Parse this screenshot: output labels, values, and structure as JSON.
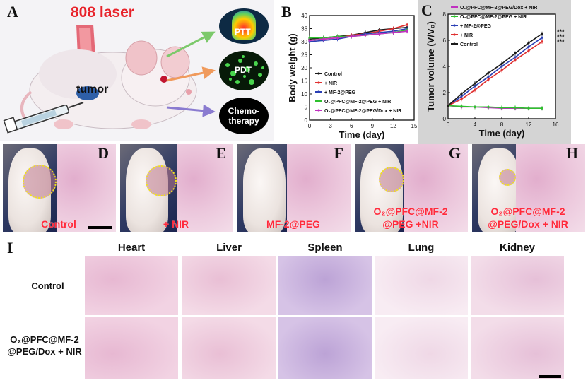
{
  "panelA": {
    "label": "A",
    "laser": "808 laser",
    "tumor": "tumor",
    "out1": "PTT",
    "out2": "PDT",
    "out3": "Chemo-\ntherapy"
  },
  "panelD_H": [
    {
      "label": "D",
      "caption": "Control"
    },
    {
      "label": "E",
      "caption": "+ NIR"
    },
    {
      "label": "F",
      "caption": "MF-2@PEG"
    },
    {
      "label": "G",
      "caption": "O₂@PFC@MF-2\n@PEG +NIR"
    },
    {
      "label": "H",
      "caption": "O₂@PFC@MF-2\n@PEG/Dox + NIR"
    }
  ],
  "panelI": {
    "label": "I",
    "organs": [
      "Heart",
      "Liver",
      "Spleen",
      "Lung",
      "Kidney"
    ],
    "rows": [
      "Control",
      "O₂@PFC@MF-2\n@PEG/Dox + NIR"
    ]
  },
  "chart_data": [
    {
      "type": "line",
      "panel": "B",
      "xlabel": "Time (day)",
      "ylabel": "Body weight (g)",
      "xlim": [
        0,
        15
      ],
      "ylim": [
        0,
        40
      ],
      "xticks": [
        0,
        3,
        6,
        9,
        12,
        15
      ],
      "yticks": [
        0,
        5,
        10,
        15,
        20,
        25,
        30,
        35,
        40
      ],
      "legend_position": "bottom-left",
      "series": [
        {
          "name": "Control",
          "color": "#1a1a1a",
          "x": [
            0,
            2,
            4,
            6,
            8,
            10,
            12,
            14
          ],
          "y": [
            31,
            31.5,
            32,
            32.5,
            33.5,
            34.5,
            35,
            35.5
          ]
        },
        {
          "name": "+ NIR",
          "color": "#e03030",
          "x": [
            0,
            2,
            4,
            6,
            8,
            10,
            12,
            14
          ],
          "y": [
            30.5,
            31,
            31.5,
            32.5,
            33,
            34,
            35,
            36.5
          ]
        },
        {
          "name": "+ MF-2@PEG",
          "color": "#2a3fb5",
          "x": [
            0,
            2,
            4,
            6,
            8,
            10,
            12,
            14
          ],
          "y": [
            30,
            30.5,
            31,
            32,
            33,
            33.5,
            34,
            35
          ]
        },
        {
          "name": "O₂@PFC@MF-2@PEG + NIR",
          "color": "#2ec02e",
          "x": [
            0,
            2,
            4,
            6,
            8,
            10,
            12,
            14
          ],
          "y": [
            31.5,
            31.5,
            32,
            32,
            32.5,
            33,
            33.5,
            34.5
          ]
        },
        {
          "name": "O₂@PFC@MF-2@PEG/Dox + NIR",
          "color": "#c030c0",
          "x": [
            0,
            2,
            4,
            6,
            8,
            10,
            12,
            14
          ],
          "y": [
            30.5,
            31,
            31.5,
            32,
            32.5,
            33,
            33.5,
            34
          ]
        }
      ]
    },
    {
      "type": "line",
      "panel": "C",
      "xlabel": "Time (day)",
      "ylabel": "Tumor volume (V/V₀)",
      "xlim": [
        0,
        16
      ],
      "ylim": [
        0,
        8
      ],
      "xticks": [
        0,
        4,
        8,
        12,
        16
      ],
      "yticks": [
        0,
        2,
        4,
        6,
        8
      ],
      "legend_position": "top-left",
      "annotation": "***",
      "series": [
        {
          "name": "O₂@PFC@MF-2@PEG/Dox + NIR",
          "color": "#c030c0",
          "x": [
            0,
            2,
            4,
            6,
            8,
            10,
            12,
            14
          ],
          "y": [
            1,
            0.9,
            0.9,
            0.85,
            0.8,
            0.8,
            0.8,
            0.8
          ]
        },
        {
          "name": "O₂@PFC@MF-2@PEG + NIR",
          "color": "#2ec02e",
          "x": [
            0,
            2,
            4,
            6,
            8,
            10,
            12,
            14
          ],
          "y": [
            1,
            0.95,
            0.9,
            0.9,
            0.85,
            0.85,
            0.8,
            0.8
          ]
        },
        {
          "name": "+ MF-2@PEG",
          "color": "#2a3fb5",
          "x": [
            0,
            2,
            4,
            6,
            8,
            10,
            12,
            14
          ],
          "y": [
            1,
            1.7,
            2.5,
            3.2,
            4.0,
            4.7,
            5.5,
            6.2
          ]
        },
        {
          "name": "+ NIR",
          "color": "#e03030",
          "x": [
            0,
            2,
            4,
            6,
            8,
            10,
            12,
            14
          ],
          "y": [
            1,
            1.5,
            2.2,
            3.0,
            3.7,
            4.5,
            5.2,
            5.9
          ]
        },
        {
          "name": "Control",
          "color": "#1a1a1a",
          "x": [
            0,
            2,
            4,
            6,
            8,
            10,
            12,
            14
          ],
          "y": [
            1,
            1.9,
            2.7,
            3.5,
            4.2,
            5.0,
            5.8,
            6.5
          ]
        }
      ]
    }
  ]
}
